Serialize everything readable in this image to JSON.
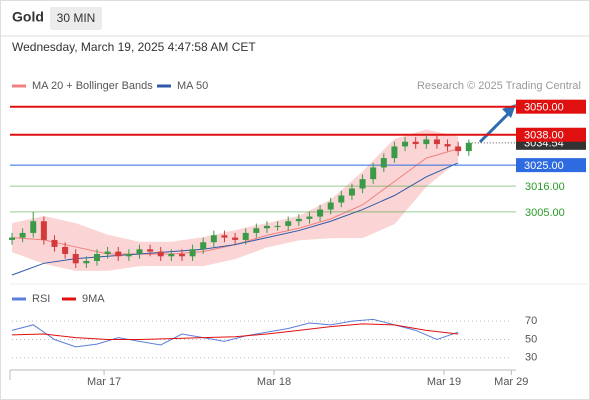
{
  "header": {
    "symbol": "Gold",
    "interval": "30 MIN",
    "timestamp": "Wednesday, March 19, 2025 4:47:58 AM CET"
  },
  "chart_data": [
    {
      "type": "candlestick",
      "credit": "Research © 2025 Trading Central",
      "up_color": "#3a9a48",
      "down_color": "#d43a3a",
      "xlim": [
        -13,
        57.6
      ],
      "ylim": [
        2975,
        3055
      ],
      "x": [
        -13,
        -11.5,
        -10,
        -8.5,
        -7,
        -5.5,
        -4,
        -2.5,
        -1,
        0.5,
        2,
        3.5,
        5,
        6.5,
        8,
        9.5,
        11,
        12.5,
        14,
        15.5,
        17,
        18.5,
        20,
        21.5,
        23,
        24.5,
        26,
        27.5,
        29,
        30.5,
        32,
        33.5,
        35,
        36.5,
        38,
        39.5,
        41,
        42.5,
        44,
        45.5,
        47,
        48.5,
        50,
        51.5
      ],
      "open": [
        2993,
        2994,
        2996,
        3001,
        2993,
        2990,
        2987,
        2983,
        2984,
        2987,
        2988,
        2986,
        2987,
        2989,
        2988,
        2986,
        2987,
        2986,
        2989,
        2992,
        2995,
        2994,
        2993,
        2996,
        2998,
        2999,
        2999,
        3001,
        3002,
        3003,
        3006,
        3009,
        3012,
        3015,
        3019,
        3024,
        3028,
        3033,
        3035,
        3034,
        3036,
        3034,
        3033,
        3031
      ],
      "high": [
        2996,
        2998,
        3005,
        3003,
        2995,
        2992,
        2989,
        2986,
        2989,
        2990,
        2990,
        2989,
        2991,
        2991,
        2990,
        2989,
        2989,
        2991,
        2994,
        2997,
        2997,
        2996,
        2998,
        3000,
        3001,
        3001,
        3003,
        3004,
        3005,
        3008,
        3011,
        3014,
        3017,
        3021,
        3026,
        3030,
        3035,
        3037,
        3037,
        3038,
        3038,
        3036,
        3035,
        3036
      ],
      "low": [
        2991,
        2992,
        2994,
        2991,
        2988,
        2985,
        2981,
        2981,
        2982,
        2985,
        2984,
        2984,
        2985,
        2986,
        2984,
        2984,
        2984,
        2984,
        2987,
        2990,
        2992,
        2991,
        2991,
        2994,
        2996,
        2997,
        2997,
        2999,
        3000,
        3001,
        3004,
        3007,
        3010,
        3013,
        3017,
        3022,
        3026,
        3031,
        3032,
        3032,
        3032,
        3031,
        3029,
        3029
      ],
      "close": [
        2994,
        2996,
        3001,
        2993,
        2990,
        2987,
        2983,
        2984,
        2987,
        2988,
        2986,
        2987,
        2989,
        2988,
        2986,
        2987,
        2986,
        2989,
        2992,
        2995,
        2994,
        2993,
        2996,
        2998,
        2999,
        2999,
        3001,
        3002,
        3003,
        3006,
        3009,
        3012,
        3015,
        3019,
        3024,
        3028,
        3033,
        3035,
        3034,
        3036,
        3034,
        3033,
        3031,
        3034.54
      ],
      "series": [
        {
          "name": "MA 20 + Bollinger Bands",
          "color": "#f08080",
          "band_color": "#fbd5d5",
          "x": [
            -13,
            -8.5,
            -4,
            0.5,
            5,
            9.5,
            14,
            18.5,
            23,
            27.5,
            32,
            36.5,
            41,
            45.5,
            50
          ],
          "values": [
            2994,
            2993,
            2990,
            2987,
            2987,
            2987,
            2988,
            2991,
            2995,
            2998,
            3002,
            3008,
            3018,
            3028,
            3032
          ],
          "upper": [
            3000,
            3003,
            3000,
            2995,
            2992,
            2992,
            2994,
            2997,
            3000,
            3003,
            3010,
            3022,
            3036,
            3040,
            3037
          ],
          "lower": [
            2988,
            2983,
            2980,
            2980,
            2982,
            2982,
            2982,
            2985,
            2990,
            2993,
            2994,
            2994,
            3000,
            3016,
            3027
          ]
        },
        {
          "name": "MA 50",
          "color": "#2e5aa8",
          "x": [
            -13,
            -8.5,
            -4,
            0.5,
            5,
            9.5,
            14,
            18.5,
            23,
            27.5,
            32,
            36.5,
            41,
            45.5,
            50
          ],
          "values": [
            2978,
            2983,
            2985,
            2986,
            2987,
            2988,
            2989,
            2991,
            2994,
            2997,
            3001,
            3006,
            3012,
            3020,
            3026
          ]
        }
      ],
      "current_price": {
        "value": 3034.54,
        "label": "3034.54",
        "color": "#333333"
      },
      "levels": [
        {
          "value": 3050,
          "label": "3050.00",
          "color": "#e01010",
          "boxed": true
        },
        {
          "value": 3038,
          "label": "3038.00",
          "color": "#e01010",
          "boxed": true
        },
        {
          "value": 3025,
          "label": "3025.00",
          "color": "#2e6be0",
          "boxed": true
        },
        {
          "value": 3016,
          "label": "3016.00",
          "color": "#2a9a2a",
          "boxed": false
        },
        {
          "value": 3005,
          "label": "3005.00",
          "color": "#2a9a2a",
          "boxed": false
        }
      ]
    },
    {
      "type": "line",
      "xlim": [
        -13,
        57.6
      ],
      "ylim": [
        20,
        80
      ],
      "yticks": [
        30,
        50,
        70
      ],
      "xticks": [
        {
          "value": 0,
          "label": "Mar 17"
        },
        {
          "value": 24,
          "label": "Mar 18"
        },
        {
          "value": 48,
          "label": "Mar 19"
        },
        {
          "value": 57.5,
          "label": "Mar 29"
        }
      ],
      "series": [
        {
          "name": "RSI",
          "color": "#5b7fdb",
          "x": [
            -13,
            -10,
            -7,
            -4,
            -1,
            2,
            5,
            8,
            11,
            14,
            17,
            20,
            23,
            26,
            29,
            32,
            35,
            38,
            41,
            44,
            47,
            50
          ],
          "values": [
            60,
            66,
            50,
            42,
            45,
            52,
            48,
            44,
            56,
            52,
            48,
            54,
            58,
            62,
            68,
            66,
            70,
            72,
            66,
            60,
            50,
            58
          ]
        },
        {
          "name": "9MA",
          "color": "#e01010",
          "x": [
            -13,
            -8.5,
            -4,
            0.5,
            5,
            9.5,
            14,
            18.5,
            23,
            27.5,
            32,
            36.5,
            41,
            45.5,
            50
          ],
          "values": [
            55,
            56,
            52,
            50,
            50,
            51,
            52,
            53,
            56,
            60,
            64,
            67,
            66,
            60,
            56
          ]
        }
      ]
    }
  ]
}
